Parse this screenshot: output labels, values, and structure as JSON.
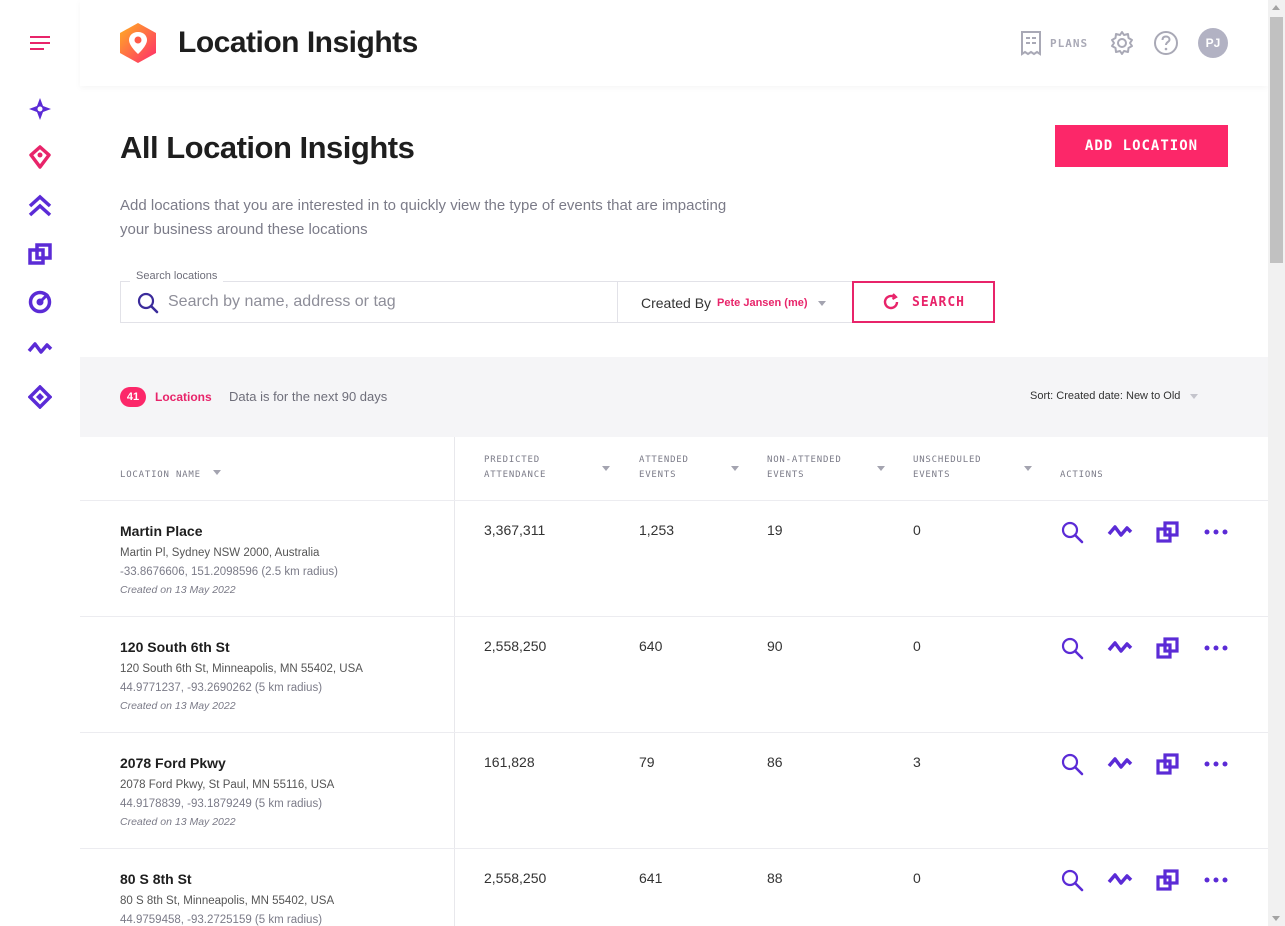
{
  "header": {
    "app_title": "Location Insights",
    "plans_label": "PLANS",
    "avatar_initials": "PJ"
  },
  "page": {
    "title": "All Location Insights",
    "add_button_label": "ADD LOCATION",
    "description": "Add locations that you are interested in to quickly view the type of events that are impacting your business around these locations"
  },
  "search": {
    "legend": "Search locations",
    "placeholder": "Search by name, address or tag",
    "value": "",
    "created_by_label": "Created By",
    "created_by_value": "Pete Jansen (me)",
    "button_label": "SEARCH"
  },
  "summary": {
    "count": "41",
    "count_label": "Locations",
    "note": "Data is for the next 90 days",
    "sort_label": "Sort: Created date: New to Old"
  },
  "table": {
    "headers": {
      "location_name": "LOCATION NAME",
      "predicted_attendance_1": "PREDICTED",
      "predicted_attendance_2": "ATTENDANCE",
      "attended_1": "ATTENDED",
      "attended_2": "EVENTS",
      "non_attended_1": "NON-ATTENDED",
      "non_attended_2": "EVENTS",
      "unscheduled_1": "UNSCHEDULED",
      "unscheduled_2": "EVENTS",
      "actions": "ACTIONS"
    },
    "rows": [
      {
        "name": "Martin Place",
        "address": "Martin Pl, Sydney NSW 2000, Australia",
        "coords": "-33.8676606, 151.2098596 (2.5 km radius)",
        "created": "Created on 13 May 2022",
        "predicted": "3,367,311",
        "attended": "1,253",
        "non_attended": "19",
        "unscheduled": "0"
      },
      {
        "name": "120 South 6th St",
        "address": "120 South 6th St, Minneapolis, MN 55402, USA",
        "coords": "44.9771237, -93.2690262 (5 km radius)",
        "created": "Created on 13 May 2022",
        "predicted": "2,558,250",
        "attended": "640",
        "non_attended": "90",
        "unscheduled": "0"
      },
      {
        "name": "2078 Ford Pkwy",
        "address": "2078 Ford Pkwy, St Paul, MN 55116, USA",
        "coords": "44.9178839, -93.1879249 (5 km radius)",
        "created": "Created on 13 May 2022",
        "predicted": "161,828",
        "attended": "79",
        "non_attended": "86",
        "unscheduled": "3"
      },
      {
        "name": "80 S 8th St",
        "address": "80 S 8th St, Minneapolis, MN 55402, USA",
        "coords": "44.9759458, -93.2725159 (5 km radius)",
        "created": "",
        "predicted": "2,558,250",
        "attended": "641",
        "non_attended": "88",
        "unscheduled": "0"
      }
    ]
  },
  "colors": {
    "accent_pink": "#fc2769",
    "accent_purple": "#5b2bd6",
    "text_dark": "#1e1e1e",
    "text_muted": "#7b7b88",
    "band_bg": "#f5f5f7"
  },
  "icons": {
    "rail": [
      "menu-icon",
      "sparkle-icon",
      "location-pin-icon",
      "double-chevron-up-icon",
      "overlap-squares-icon",
      "target-icon",
      "trend-icon",
      "diamond-icon"
    ],
    "header": [
      "plans-icon",
      "gear-icon",
      "help-icon"
    ],
    "row_actions": [
      "search-icon",
      "trend-icon",
      "overlap-squares-icon",
      "more-icon"
    ]
  }
}
